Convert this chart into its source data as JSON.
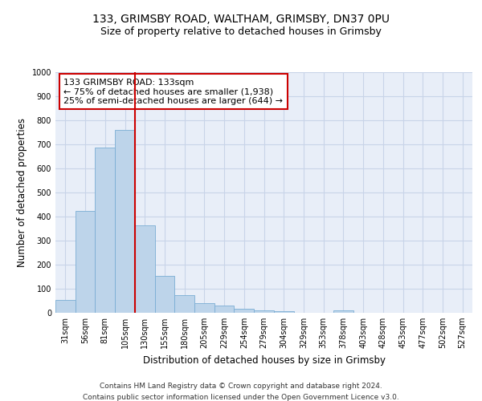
{
  "title1": "133, GRIMSBY ROAD, WALTHAM, GRIMSBY, DN37 0PU",
  "title2": "Size of property relative to detached houses in Grimsby",
  "xlabel": "Distribution of detached houses by size in Grimsby",
  "ylabel": "Number of detached properties",
  "categories": [
    "31sqm",
    "56sqm",
    "81sqm",
    "105sqm",
    "130sqm",
    "155sqm",
    "180sqm",
    "205sqm",
    "229sqm",
    "254sqm",
    "279sqm",
    "304sqm",
    "329sqm",
    "353sqm",
    "378sqm",
    "403sqm",
    "428sqm",
    "453sqm",
    "477sqm",
    "502sqm",
    "527sqm"
  ],
  "values": [
    52,
    422,
    686,
    760,
    363,
    153,
    74,
    40,
    30,
    17,
    10,
    8,
    0,
    0,
    10,
    0,
    0,
    0,
    0,
    0,
    0
  ],
  "bar_color": "#bdd4ea",
  "bar_edge_color": "#7aadd4",
  "vline_color": "#cc0000",
  "vline_x_index": 3.5,
  "annotation_text": "133 GRIMSBY ROAD: 133sqm\n← 75% of detached houses are smaller (1,938)\n25% of semi-detached houses are larger (644) →",
  "annotation_box_color": "#ffffff",
  "annotation_box_edge_color": "#cc0000",
  "ylim": [
    0,
    1000
  ],
  "yticks": [
    0,
    100,
    200,
    300,
    400,
    500,
    600,
    700,
    800,
    900,
    1000
  ],
  "grid_color": "#c8d4e8",
  "background_color": "#e8eef8",
  "footer1": "Contains HM Land Registry data © Crown copyright and database right 2024.",
  "footer2": "Contains public sector information licensed under the Open Government Licence v3.0.",
  "title1_fontsize": 10,
  "title2_fontsize": 9,
  "xlabel_fontsize": 8.5,
  "ylabel_fontsize": 8.5,
  "tick_fontsize": 7,
  "annotation_fontsize": 8,
  "footer_fontsize": 6.5
}
